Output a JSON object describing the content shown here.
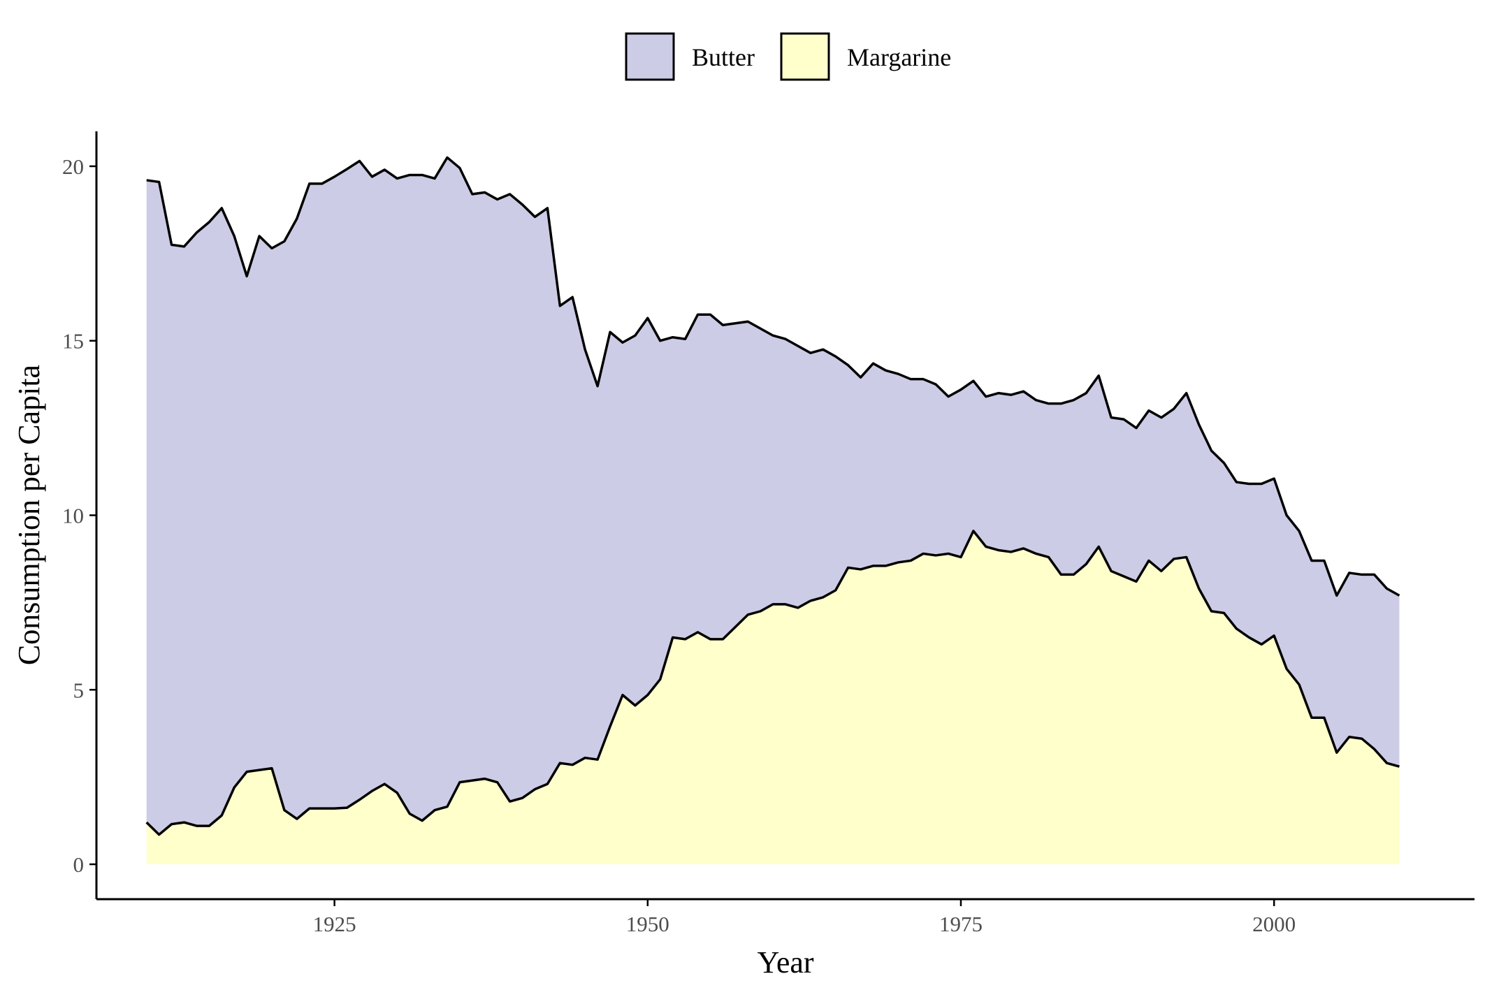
{
  "chart_data": {
    "type": "area",
    "stacked": true,
    "xlabel": "Year",
    "ylabel": "Consumption per Capita",
    "xlim": [
      1906,
      2016
    ],
    "ylim": [
      -1,
      21
    ],
    "x_ticks": [
      1925,
      1950,
      1975,
      2000
    ],
    "y_ticks": [
      0,
      5,
      10,
      15,
      20
    ],
    "grid": false,
    "legend_position": "top",
    "x": [
      1910,
      1911,
      1912,
      1913,
      1914,
      1915,
      1916,
      1917,
      1918,
      1919,
      1920,
      1921,
      1922,
      1923,
      1924,
      1925,
      1926,
      1927,
      1928,
      1929,
      1930,
      1931,
      1932,
      1933,
      1934,
      1935,
      1936,
      1937,
      1938,
      1939,
      1940,
      1941,
      1942,
      1943,
      1944,
      1945,
      1946,
      1947,
      1948,
      1949,
      1950,
      1951,
      1952,
      1953,
      1954,
      1955,
      1956,
      1957,
      1958,
      1959,
      1960,
      1961,
      1962,
      1963,
      1964,
      1965,
      1966,
      1967,
      1968,
      1969,
      1970,
      1971,
      1972,
      1973,
      1974,
      1975,
      1976,
      1977,
      1978,
      1979,
      1980,
      1981,
      1982,
      1983,
      1984,
      1985,
      1986,
      1987,
      1988,
      1989,
      1990,
      1991,
      1992,
      1993,
      1994,
      1995,
      1996,
      1997,
      1998,
      1999,
      2000,
      2001,
      2002,
      2003,
      2004,
      2005,
      2006,
      2007,
      2008,
      2009,
      2010
    ],
    "series": [
      {
        "name": "Butter",
        "color": "#cccce6",
        "values": [
          18.4,
          18.7,
          16.6,
          16.5,
          17,
          17.3,
          17.4,
          15.8,
          14.2,
          15.3,
          14.9,
          16.3,
          17.2,
          17.9,
          17.9,
          18.1,
          18.3,
          18.3,
          17.6,
          17.6,
          17.6,
          18.3,
          18.5,
          18.1,
          18.6,
          17.6,
          16.8,
          16.8,
          16.7,
          17.4,
          17,
          16.4,
          16.5,
          13.1,
          13.4,
          11.7,
          10.7,
          11.3,
          10.1,
          10.6,
          10.8,
          9.7,
          8.6,
          8.6,
          9.1,
          9.3,
          9.0,
          8.7,
          8.4,
          8.1,
          7.7,
          7.6,
          7.5,
          7.1,
          7.1,
          6.7,
          5.8,
          5.5,
          5.8,
          5.6,
          5.4,
          5.2,
          5.0,
          4.9,
          4.5,
          4.8,
          4.3,
          4.3,
          4.5,
          4.5,
          4.5,
          4.4,
          4.4,
          4.9,
          5,
          4.9,
          4.9,
          4.4,
          4.5,
          4.4,
          4.3,
          4.4,
          4.3,
          4.7,
          4.7,
          4.6,
          4.3,
          4.2,
          4.4,
          4.6,
          4.5,
          4.4,
          4.4,
          4.5,
          4.5,
          4.5,
          4.7,
          4.7,
          5.0,
          5.0,
          4.9
        ]
      },
      {
        "name": "Margarine",
        "color": "#ffffcc",
        "values": [
          1.2,
          0.85,
          1.15,
          1.2,
          1.1,
          1.1,
          1.4,
          2.2,
          2.65,
          2.7,
          2.75,
          1.55,
          1.3,
          1.6,
          1.6,
          1.6,
          1.62,
          1.85,
          2.1,
          2.3,
          2.05,
          1.45,
          1.25,
          1.55,
          1.65,
          2.35,
          2.4,
          2.45,
          2.35,
          1.8,
          1.9,
          2.15,
          2.3,
          2.9,
          2.85,
          3.05,
          3,
          3.95,
          4.85,
          4.55,
          4.85,
          5.3,
          6.5,
          6.45,
          6.65,
          6.45,
          6.45,
          6.8,
          7.15,
          7.25,
          7.45,
          7.45,
          7.35,
          7.55,
          7.65,
          7.85,
          8.5,
          8.45,
          8.55,
          8.55,
          8.65,
          8.7,
          8.9,
          8.85,
          8.9,
          8.8,
          9.55,
          9.1,
          9.0,
          8.95,
          9.05,
          8.9,
          8.8,
          8.3,
          8.3,
          8.6,
          9.1,
          8.4,
          8.25,
          8.1,
          8.7,
          8.4,
          8.75,
          8.8,
          7.9,
          7.25,
          7.2,
          6.75,
          6.5,
          6.3,
          6.55,
          5.6,
          5.15,
          4.2,
          4.2,
          3.2,
          3.65,
          3.6,
          3.3,
          2.9,
          2.8
        ]
      }
    ]
  }
}
